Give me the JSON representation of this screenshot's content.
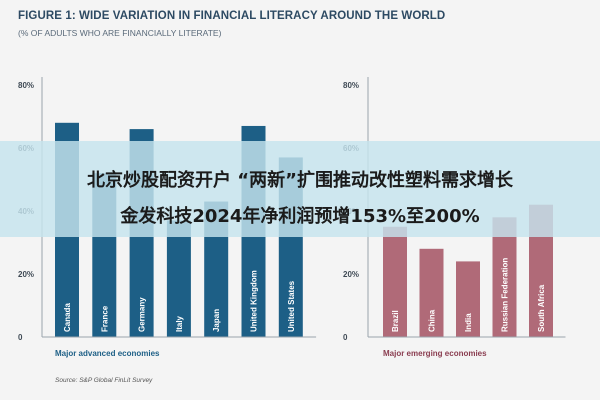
{
  "figure": {
    "title": "FIGURE 1: WIDE VARIATION IN FINANCIAL LITERACY AROUND THE WORLD",
    "subtitle": "(% OF ADULTS WHO ARE FINANCIALLY LITERATE)",
    "source": "Source: S&P Global FinLit Survey"
  },
  "headline": {
    "line1": "北京炒股配资开户 “两新”扩围推动改性塑料需求增长",
    "line2": "金发科技2024年净利润预增153%至200%"
  },
  "colors": {
    "advanced": "#1d5f86",
    "emerging": "#b06a78",
    "emerging_label": "#8a3d50"
  },
  "chart_data": [
    {
      "type": "bar",
      "group_label": "Major advanced economies",
      "categories": [
        "Canada",
        "France",
        "Germany",
        "Italy",
        "Japan",
        "United Kingdom",
        "United States"
      ],
      "values": [
        68,
        52,
        66,
        37,
        43,
        67,
        57
      ],
      "yticks": [
        "80%",
        "60%",
        "40%",
        "20%",
        "0"
      ],
      "ylim": [
        0,
        80
      ]
    },
    {
      "type": "bar",
      "group_label": "Major emerging economies",
      "categories": [
        "Brazil",
        "China",
        "India",
        "Russian Federation",
        "South Africa"
      ],
      "values": [
        35,
        28,
        24,
        38,
        42
      ],
      "yticks": [
        "80%",
        "60%",
        "40%",
        "20%",
        "0"
      ],
      "ylim": [
        0,
        80
      ]
    }
  ]
}
